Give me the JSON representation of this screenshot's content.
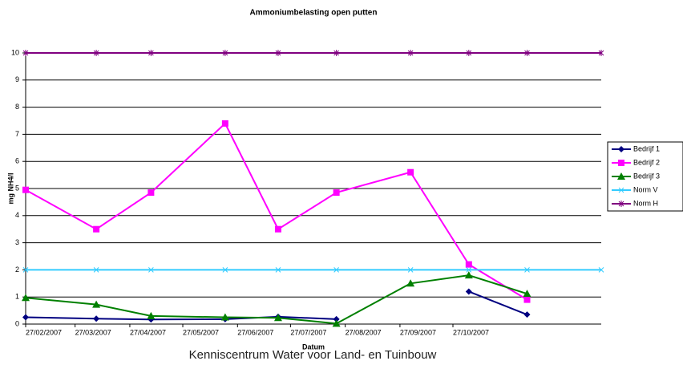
{
  "chart_data": {
    "type": "line",
    "title": "Ammoniumbelasting open putten",
    "x_label": "Datum",
    "y_label": "mg NH4/l",
    "footer": "Kenniscentrum Water voor Land- en Tuinbouw",
    "x": [
      "2007-02-27",
      "2007-04-08",
      "2007-05-09",
      "2007-06-20",
      "2007-07-20",
      "2007-08-22",
      "2007-10-03",
      "2007-11-05",
      "2007-12-08",
      "2008-01-19"
    ],
    "xlim": [
      "2007-02-27",
      "2008-01-19"
    ],
    "xticks": [
      {
        "value": "2007-02-27",
        "label": "27/02/2007"
      },
      {
        "value": "2007-03-27",
        "label": "27/03/2007"
      },
      {
        "value": "2007-04-27",
        "label": "27/04/2007"
      },
      {
        "value": "2007-05-27",
        "label": "27/05/2007"
      },
      {
        "value": "2007-06-27",
        "label": "27/06/2007"
      },
      {
        "value": "2007-07-27",
        "label": "27/07/2007"
      },
      {
        "value": "2007-08-27",
        "label": "27/08/2007"
      },
      {
        "value": "2007-09-27",
        "label": "27/09/2007"
      },
      {
        "value": "2007-10-27",
        "label": "27/10/2007"
      }
    ],
    "ylim": [
      0,
      10
    ],
    "yticks": [
      0,
      1,
      2,
      3,
      4,
      5,
      6,
      7,
      8,
      9,
      10
    ],
    "grid": true,
    "series": [
      {
        "name": "Bedrijf 1",
        "color": "#000080",
        "marker": "diamond",
        "values": [
          0.25,
          0.2,
          0.17,
          0.18,
          0.27,
          0.18,
          null,
          1.2,
          0.35,
          null
        ]
      },
      {
        "name": "Bedrijf 2",
        "color": "#ff00ff",
        "marker": "square",
        "values": [
          4.95,
          3.5,
          4.85,
          7.4,
          3.5,
          4.85,
          5.6,
          2.2,
          0.9,
          null
        ]
      },
      {
        "name": "Bedrijf 3",
        "color": "#008000",
        "marker": "triangle",
        "values": [
          0.97,
          0.72,
          0.3,
          0.25,
          0.23,
          0.02,
          1.5,
          1.8,
          1.12,
          null
        ]
      },
      {
        "name": "Norm V",
        "color": "#33ccff",
        "marker": "x",
        "values": [
          2,
          2,
          2,
          2,
          2,
          2,
          2,
          2,
          2,
          2
        ]
      },
      {
        "name": "Norm H",
        "color": "#800080",
        "marker": "star",
        "values": [
          10,
          10,
          10,
          10,
          10,
          10,
          10,
          10,
          10,
          10
        ]
      }
    ]
  }
}
